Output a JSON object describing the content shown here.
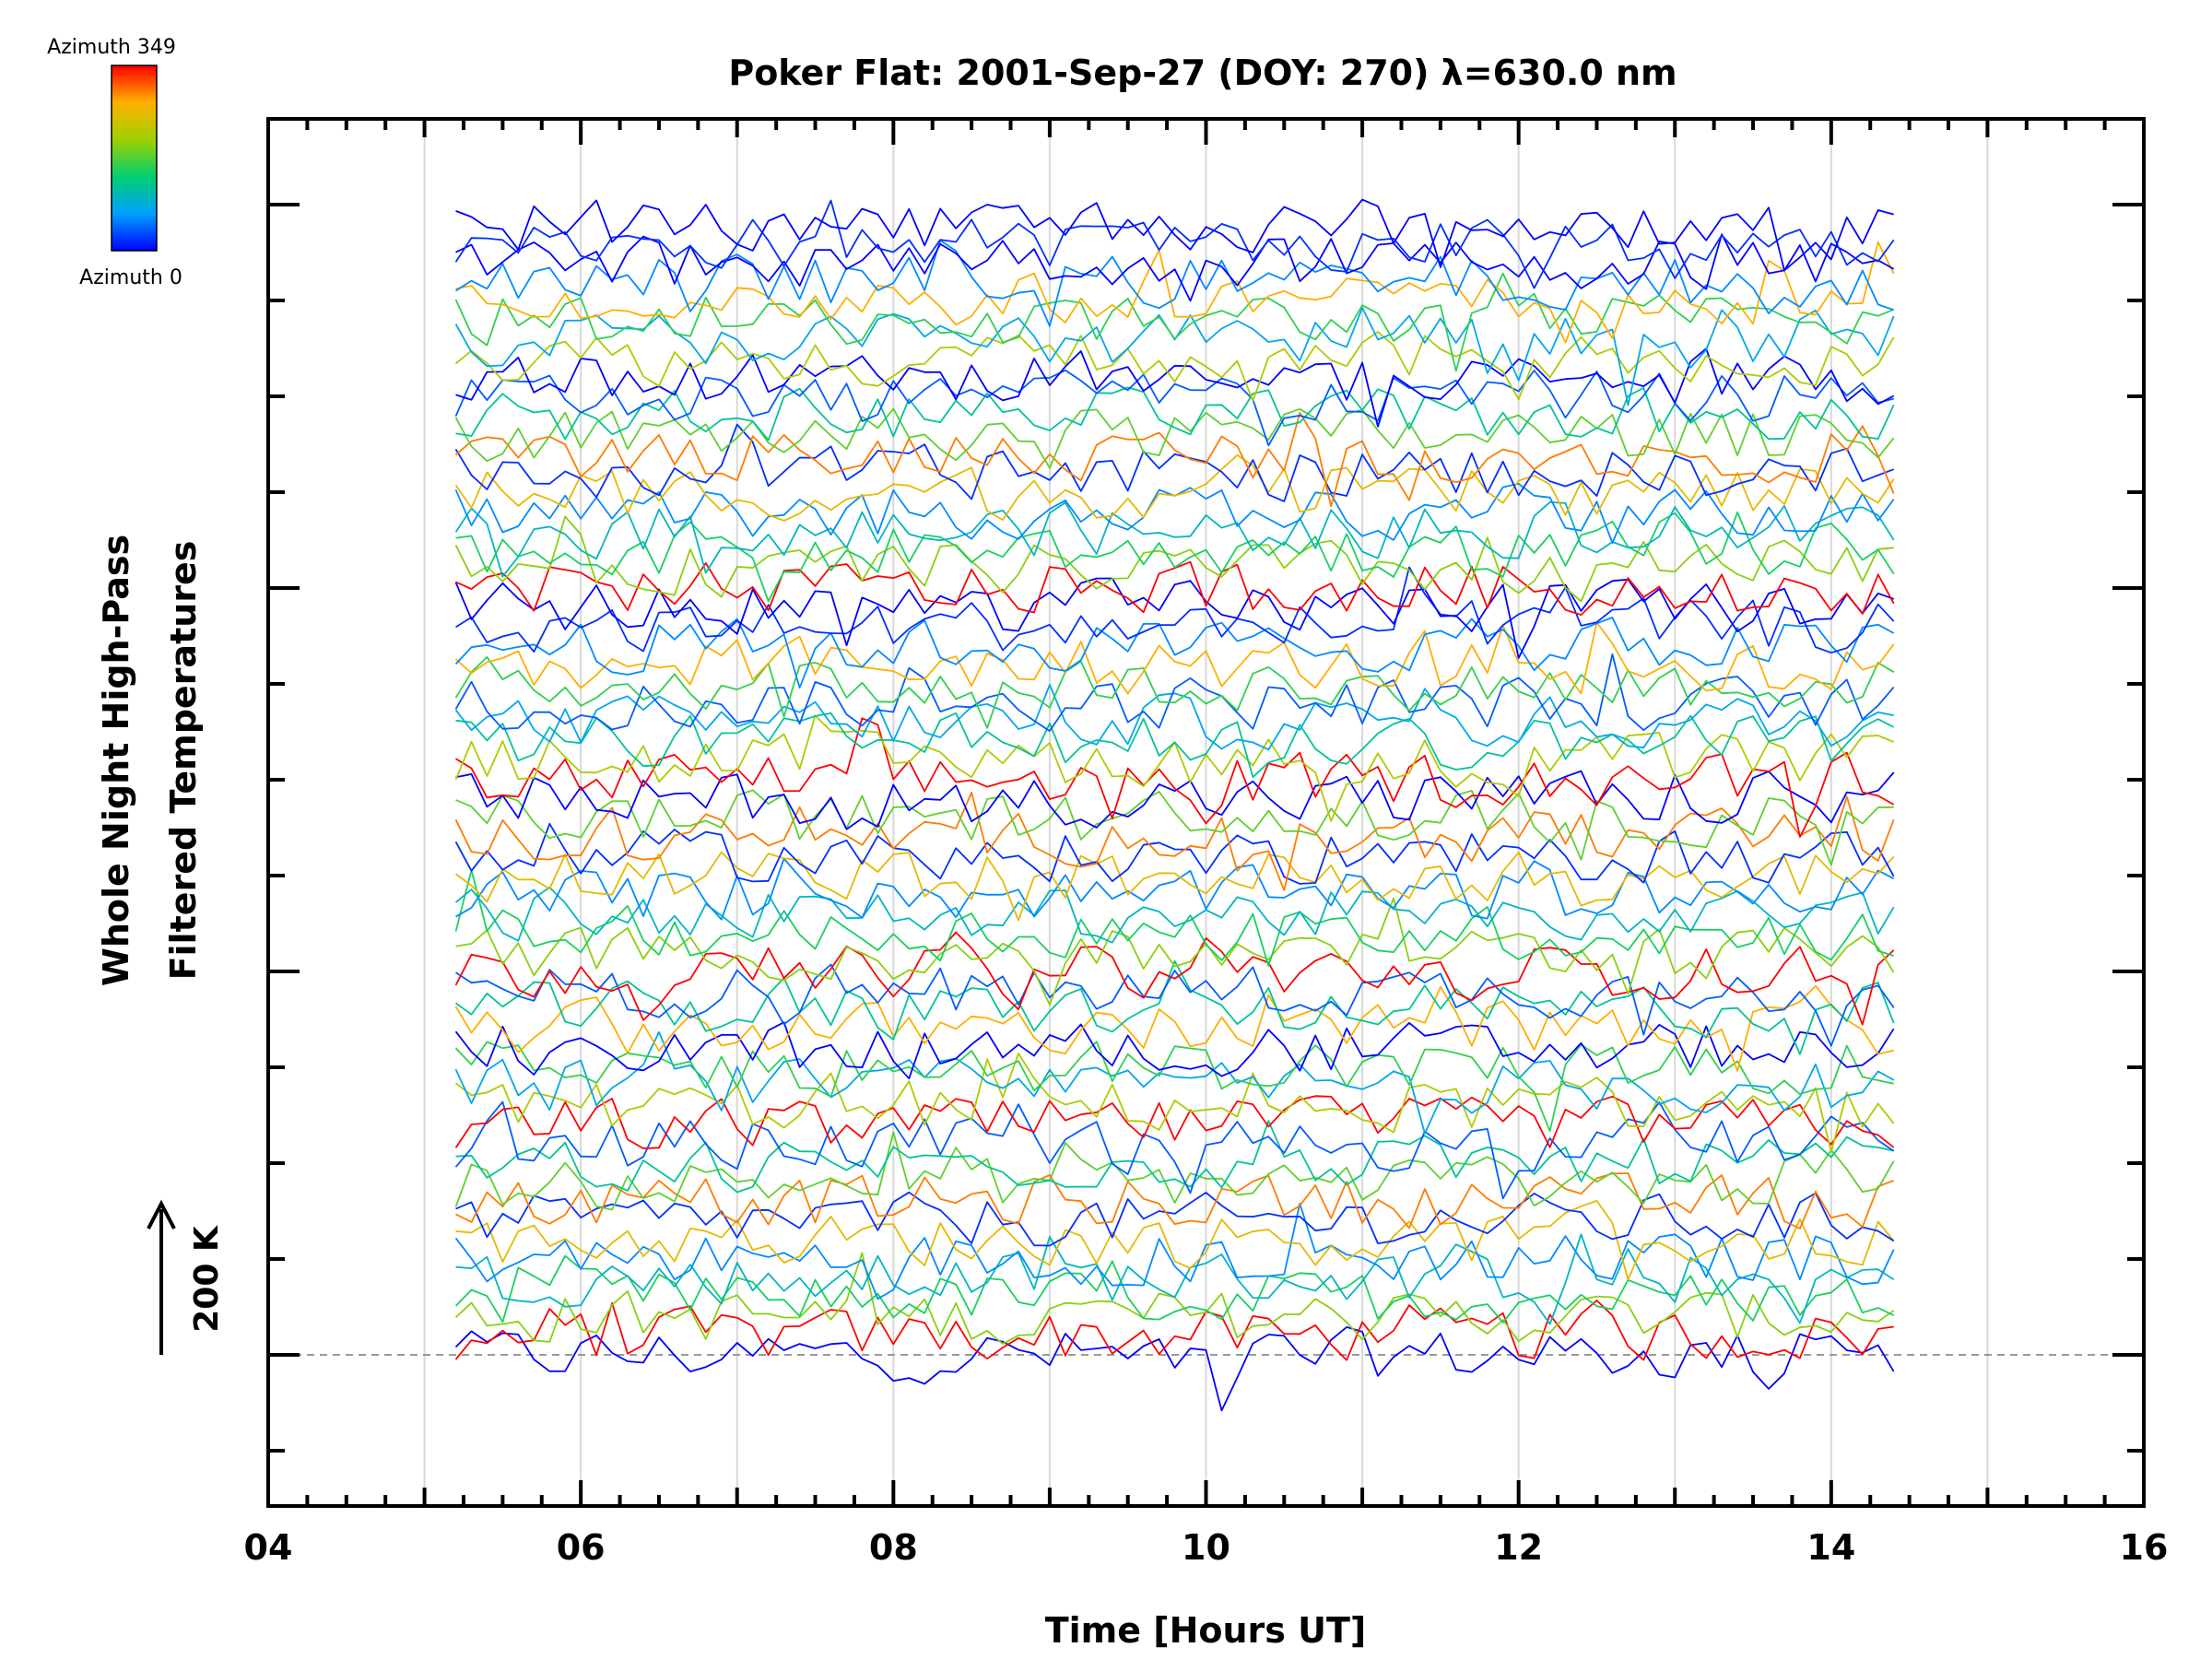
{
  "chart_data": {
    "type": "line",
    "title": "Poker Flat: 2001-Sep-27 (DOY: 270) λ=630.0 nm",
    "xlabel": "Time [Hours UT]",
    "ylabel_lines": [
      "Whole Night High-Pass",
      "Filtered Temperatures"
    ],
    "scale_bar_label": "200 K",
    "colorbar": {
      "top_label": "Azimuth 349",
      "bottom_label": "Azimuth 0",
      "azimuth_min": 0,
      "azimuth_max": 349,
      "colors": [
        "#0000ff",
        "#00a0ff",
        "#00d070",
        "#a0d000",
        "#ffb000",
        "#ff0000"
      ]
    },
    "xlim": [
      4,
      16
    ],
    "x_ticks": [
      "04",
      "06",
      "08",
      "10",
      "12",
      "14",
      "16"
    ],
    "x_tick_values": [
      4,
      6,
      8,
      10,
      12,
      14,
      16
    ],
    "x_gridlines": [
      5,
      6,
      7,
      8,
      9,
      10,
      11,
      12,
      13,
      14,
      15
    ],
    "time_range": [
      5.2,
      14.4
    ],
    "time_step": 0.1,
    "series_count": 60,
    "series_offsets": [
      0,
      0.2,
      0.4,
      0.6,
      0.8,
      1.0,
      1.2,
      1.4,
      1.6,
      1.8,
      2.0,
      2.2,
      2.4,
      2.6,
      2.8,
      3.0,
      3.2,
      3.4,
      3.6,
      3.8,
      4.0,
      4.2,
      4.4,
      4.6,
      4.8,
      5.0,
      5.2,
      5.4,
      5.6,
      5.8,
      6.0,
      6.2,
      6.4,
      6.6,
      6.8,
      7.0,
      7.2,
      7.4,
      7.6,
      7.8,
      8.0,
      8.2,
      8.4,
      8.6,
      8.8,
      9.0,
      9.2,
      9.4,
      9.6,
      9.8,
      10.0,
      10.2,
      10.4,
      10.6,
      10.8,
      11.0,
      11.2,
      11.4,
      11.6,
      11.8
    ],
    "series_azimuths": [
      0,
      349,
      200,
      150,
      100,
      60,
      260,
      20,
      300,
      180,
      120,
      40,
      349,
      220,
      80,
      160,
      0,
      280,
      120,
      40,
      349,
      200,
      150,
      100,
      60,
      260,
      20,
      300,
      180,
      0,
      349,
      220,
      120,
      80,
      40,
      160,
      280,
      60,
      20,
      0,
      349,
      200,
      150,
      100,
      60,
      260,
      20,
      300,
      180,
      120,
      40,
      0,
      220,
      80,
      160,
      280,
      60,
      0,
      20,
      0
    ],
    "noise_amplitude": 0.12,
    "grid": true
  }
}
